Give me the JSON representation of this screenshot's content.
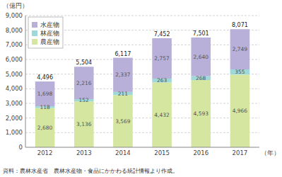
{
  "chart_data": {
    "type": "bar",
    "stacked": true,
    "data_labels": true,
    "grid": true,
    "legend": "top-left",
    "y_label": "（億円）",
    "x_label": "（年）",
    "source": "資料：農林水産省　農林水産物・食品にかかわる統計情報より作成。",
    "categories": [
      "2012",
      "2013",
      "2014",
      "2015",
      "2016",
      "2017"
    ],
    "series": [
      {
        "name": "農産物",
        "color": "#d4e6a0",
        "values": [
          2680,
          3136,
          3569,
          4432,
          4593,
          4966
        ],
        "value_labels": [
          "2,680",
          "3,136",
          "3,569",
          "4,432",
          "4,593",
          "4,966"
        ]
      },
      {
        "name": "林産物",
        "color": "#9fd8d8",
        "values": [
          118,
          152,
          211,
          263,
          268,
          355
        ],
        "value_labels": [
          "118",
          "152",
          "211",
          "263",
          "268",
          "355"
        ]
      },
      {
        "name": "水産物",
        "color": "#b8b0d8",
        "values": [
          1698,
          2216,
          2337,
          2757,
          2640,
          2749
        ],
        "value_labels": [
          "1,698",
          "2,216",
          "2,337",
          "2,757",
          "2,640",
          "2,749"
        ]
      }
    ],
    "totals": [
      4496,
      5504,
      6117,
      7452,
      7501,
      8071
    ],
    "total_labels": [
      "4,496",
      "5,504",
      "6,117",
      "7,452",
      "7,501",
      "8,071"
    ],
    "ylim": [
      0,
      9000
    ],
    "yticks": [
      0,
      {
        "value": 1000,
        "label": "1,000"
      },
      {
        "value": 2000,
        "label": "2,000"
      },
      {
        "value": 3000,
        "label": "3,000"
      },
      {
        "value": 4000,
        "label": "4,000"
      },
      {
        "value": 5000,
        "label": "5,000"
      },
      {
        "value": 6000,
        "label": "6,000"
      },
      {
        "value": 7000,
        "label": "7,000"
      },
      {
        "value": 8000,
        "label": "8,000"
      },
      {
        "value": 9000,
        "label": "9,000"
      }
    ]
  }
}
